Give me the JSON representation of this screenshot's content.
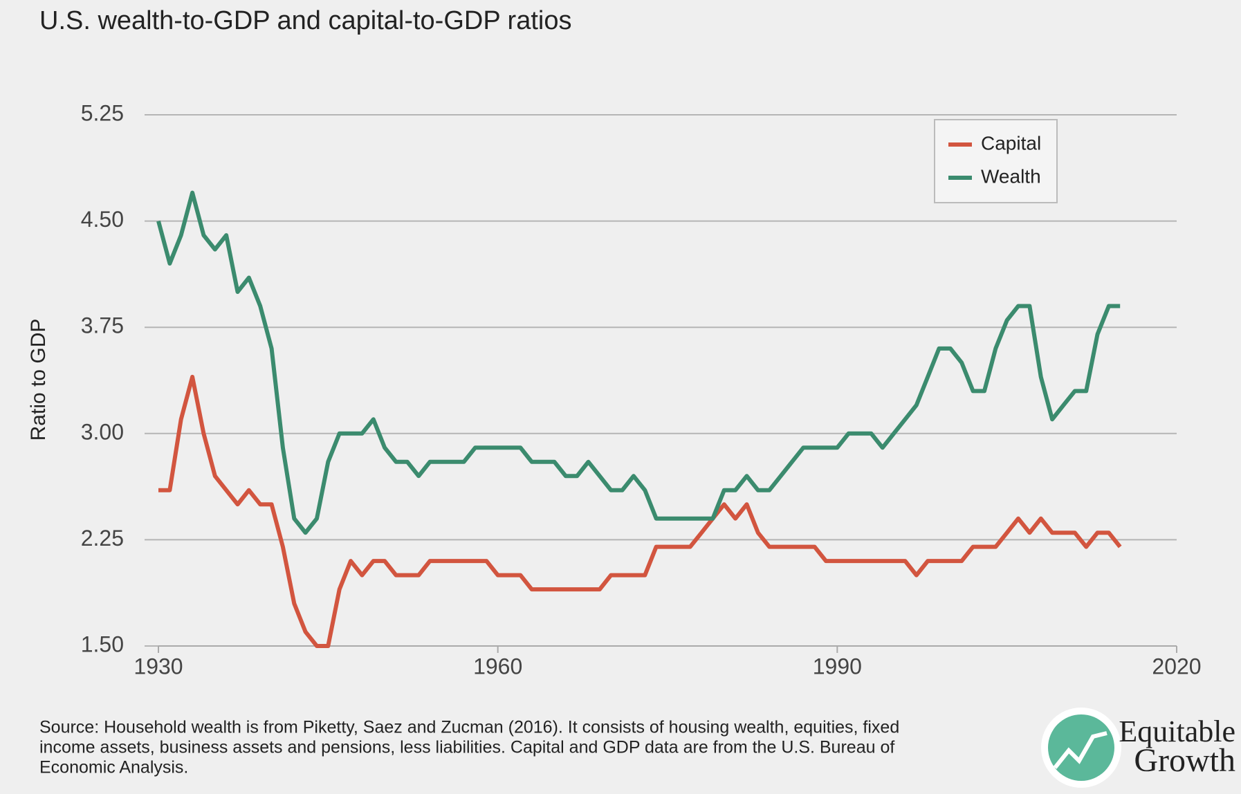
{
  "chart_data": {
    "type": "line",
    "title": "U.S. wealth-to-GDP and capital-to-GDP ratios",
    "y_label": "Ratio to GDP",
    "x": [
      1930,
      1931,
      1932,
      1933,
      1934,
      1935,
      1936,
      1937,
      1938,
      1939,
      1940,
      1941,
      1942,
      1943,
      1944,
      1945,
      1946,
      1947,
      1948,
      1949,
      1950,
      1951,
      1952,
      1953,
      1954,
      1955,
      1956,
      1957,
      1958,
      1959,
      1960,
      1961,
      1962,
      1963,
      1964,
      1965,
      1966,
      1967,
      1968,
      1969,
      1970,
      1971,
      1972,
      1973,
      1974,
      1975,
      1976,
      1977,
      1978,
      1979,
      1980,
      1981,
      1982,
      1983,
      1984,
      1985,
      1986,
      1987,
      1988,
      1989,
      1990,
      1991,
      1992,
      1993,
      1994,
      1995,
      1996,
      1997,
      1998,
      1999,
      2000,
      2001,
      2002,
      2003,
      2004,
      2005,
      2006,
      2007,
      2008,
      2009,
      2010,
      2011,
      2012,
      2013,
      2014,
      2015
    ],
    "series": [
      {
        "name": "Capital",
        "color": "#d2553f",
        "values": [
          2.6,
          2.6,
          3.1,
          3.4,
          3.0,
          2.7,
          2.6,
          2.5,
          2.6,
          2.5,
          2.5,
          2.2,
          1.8,
          1.6,
          1.5,
          1.5,
          1.9,
          2.1,
          2.0,
          2.1,
          2.1,
          2.0,
          2.0,
          2.0,
          2.1,
          2.1,
          2.1,
          2.1,
          2.1,
          2.1,
          2.0,
          2.0,
          2.0,
          1.9,
          1.9,
          1.9,
          1.9,
          1.9,
          1.9,
          1.9,
          2.0,
          2.0,
          2.0,
          2.0,
          2.2,
          2.2,
          2.2,
          2.2,
          2.3,
          2.4,
          2.5,
          2.4,
          2.5,
          2.3,
          2.2,
          2.2,
          2.2,
          2.2,
          2.2,
          2.1,
          2.1,
          2.1,
          2.1,
          2.1,
          2.1,
          2.1,
          2.1,
          2.0,
          2.1,
          2.1,
          2.1,
          2.1,
          2.2,
          2.2,
          2.2,
          2.3,
          2.4,
          2.3,
          2.4,
          2.3,
          2.3,
          2.3,
          2.2,
          2.3,
          2.3,
          2.2
        ]
      },
      {
        "name": "Wealth",
        "color": "#3b8b6e",
        "values": [
          4.5,
          4.2,
          4.4,
          4.7,
          4.4,
          4.3,
          4.4,
          4.0,
          4.1,
          3.9,
          3.6,
          2.9,
          2.4,
          2.3,
          2.4,
          2.8,
          3.0,
          3.0,
          3.0,
          3.1,
          2.9,
          2.8,
          2.8,
          2.7,
          2.8,
          2.8,
          2.8,
          2.8,
          2.9,
          2.9,
          2.9,
          2.9,
          2.9,
          2.8,
          2.8,
          2.8,
          2.7,
          2.7,
          2.8,
          2.7,
          2.6,
          2.6,
          2.7,
          2.6,
          2.4,
          2.4,
          2.4,
          2.4,
          2.4,
          2.4,
          2.6,
          2.6,
          2.7,
          2.6,
          2.6,
          2.7,
          2.8,
          2.9,
          2.9,
          2.9,
          2.9,
          3.0,
          3.0,
          3.0,
          2.9,
          3.0,
          3.1,
          3.2,
          3.4,
          3.6,
          3.6,
          3.5,
          3.3,
          3.3,
          3.6,
          3.8,
          3.9,
          3.9,
          3.4,
          3.1,
          3.2,
          3.3,
          3.3,
          3.7,
          3.9,
          3.9
        ]
      }
    ],
    "xlim": [
      1930,
      2020
    ],
    "xticks": [
      1930,
      1960,
      1990,
      2020
    ],
    "ylim": [
      1.5,
      5.25
    ],
    "yticks": [
      {
        "value": 1.5,
        "label": "1.50"
      },
      {
        "value": 2.25,
        "label": "2.25"
      },
      {
        "value": 3.0,
        "label": "3.00"
      },
      {
        "value": 3.75,
        "label": "3.75"
      },
      {
        "value": 4.5,
        "label": "4.50"
      },
      {
        "value": 5.25,
        "label": "5.25"
      }
    ],
    "grid": true,
    "legend": "upper right",
    "source": [
      "Source: Household wealth is from Piketty, Saez and Zucman (2016). It consists of housing wealth, equities, fixed",
      "income assets, business assets and pensions, less liabilities. Capital and GDP data are from the U.S. Bureau of",
      "Economic Analysis."
    ],
    "logo": [
      "Equitable",
      "Growth"
    ]
  }
}
